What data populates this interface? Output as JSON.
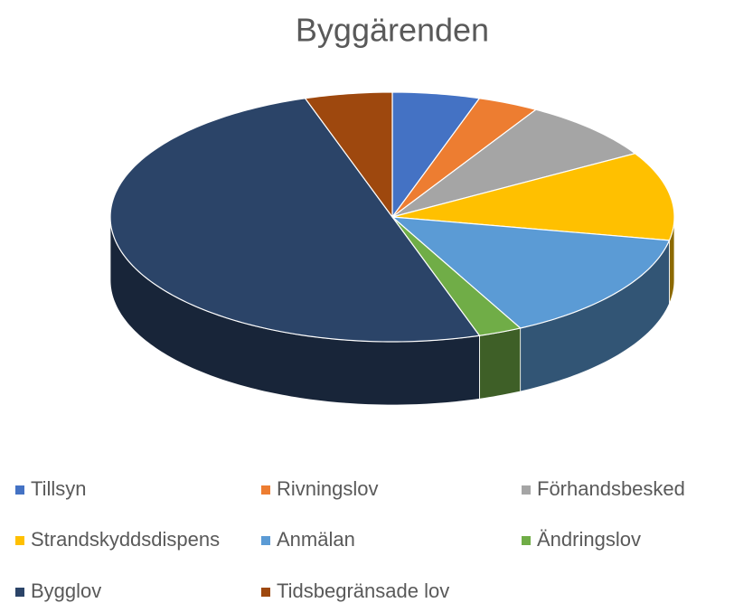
{
  "chart_data": {
    "type": "pie",
    "title": "Byggärenden",
    "categories": [
      "Tillsyn",
      "Rivningslov",
      "Förhandsbesked",
      "Strandskyddsdispens",
      "Anmälan",
      "Ändringslov",
      "Bygglov",
      "Tidsbegränsade lov"
    ],
    "values": [
      5,
      3.5,
      8,
      11.5,
      14.5,
      2.5,
      50,
      5
    ],
    "colors": [
      "#4472c4",
      "#ed7d31",
      "#a5a5a5",
      "#ffc000",
      "#5b9bd5",
      "#70ad47",
      "#2b4468",
      "#9e480e"
    ],
    "legend": "bottom"
  }
}
